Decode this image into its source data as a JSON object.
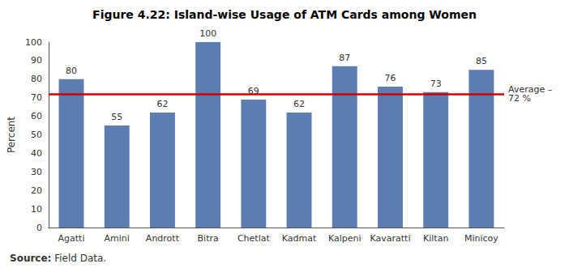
{
  "chart_data": {
    "type": "bar",
    "title": "Figure 4.22: Island-wise Usage of ATM Cards among Women",
    "categories": [
      "Agatti",
      "Amini",
      "Andrott",
      "Bitra",
      "Chetlat",
      "Kadmat",
      "Kalpeni",
      "Kavaratti",
      "Kiltan",
      "Minicoy"
    ],
    "values": [
      80,
      55,
      62,
      100,
      69,
      62,
      87,
      76,
      73,
      85
    ],
    "color": "#5B7DB1",
    "ylabel": "Percent",
    "ylim": [
      0,
      100
    ],
    "yticks": [
      0,
      10,
      20,
      30,
      40,
      50,
      60,
      70,
      80,
      90,
      100
    ],
    "grid": false,
    "data_labels": true,
    "reference_line": {
      "value": 72,
      "label": [
        "Average –",
        "72 %"
      ],
      "color": "#CC0000"
    },
    "source": [
      "Source:",
      "Field Data."
    ]
  }
}
